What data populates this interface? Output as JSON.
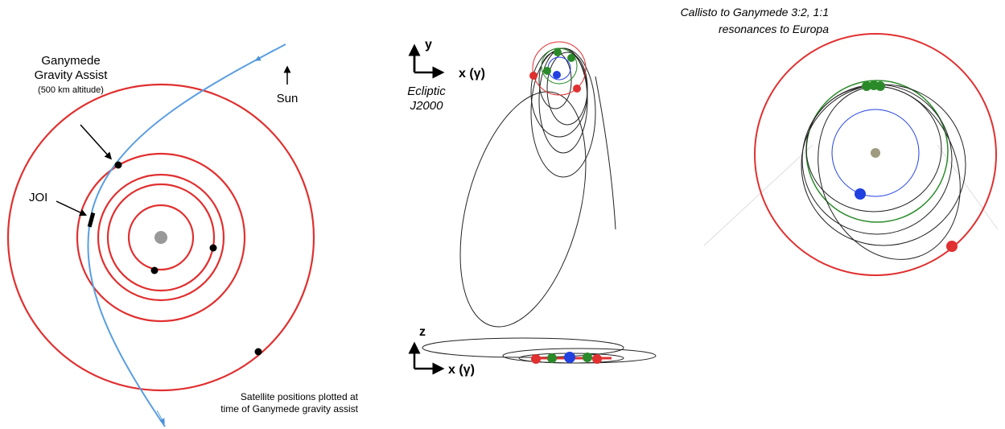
{
  "left": {
    "ganymede_label": [
      "Ganymede",
      "Gravity Assist"
    ],
    "altitude": "(500 km altitude)",
    "joi": "JOI",
    "sun": "Sun",
    "note": [
      "Satellite positions plotted at",
      "time of Ganymede gravity assist"
    ]
  },
  "middle": {
    "y_axis": "y",
    "x_axis_top": "x (γ)",
    "frame": [
      "Ecliptic",
      "J2000"
    ],
    "z_axis": "z",
    "x_axis_bottom": "x (γ)"
  },
  "right": {
    "title": [
      "Callisto to Ganymede 3:2, 1:1",
      "resonances to Europa"
    ]
  }
}
